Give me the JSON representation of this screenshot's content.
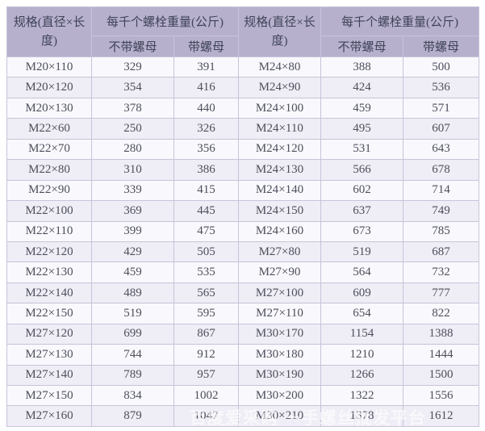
{
  "colors": {
    "header_bg": "#b7b0cd",
    "header_text": "#3e4358",
    "row_light_bg": "#f9f8fc",
    "row_alt_bg": "#efedf5",
    "border": "#c9c3da",
    "cell_text": "#4c4f5c",
    "page_bg": "#ffffff"
  },
  "table": {
    "header": {
      "spec_label": "规格(直径×长\n度)",
      "weight_group_label": "每千个螺栓重量(公斤)",
      "without_nut_label": "不带螺母",
      "with_nut_label": "带螺母"
    },
    "rows": [
      {
        "left": {
          "spec": "M20×110",
          "without_nut": "329",
          "with_nut": "391"
        },
        "right": {
          "spec": "M24×80",
          "without_nut": "388",
          "with_nut": "500"
        }
      },
      {
        "left": {
          "spec": "M20×120",
          "without_nut": "354",
          "with_nut": "416"
        },
        "right": {
          "spec": "M24×90",
          "without_nut": "424",
          "with_nut": "536"
        }
      },
      {
        "left": {
          "spec": "M20×130",
          "without_nut": "378",
          "with_nut": "440"
        },
        "right": {
          "spec": "M24×100",
          "without_nut": "459",
          "with_nut": "571"
        }
      },
      {
        "left": {
          "spec": "M22×60",
          "without_nut": "250",
          "with_nut": "326"
        },
        "right": {
          "spec": "M24×110",
          "without_nut": "495",
          "with_nut": "607"
        }
      },
      {
        "left": {
          "spec": "M22×70",
          "without_nut": "280",
          "with_nut": "356"
        },
        "right": {
          "spec": "M24×120",
          "without_nut": "531",
          "with_nut": "643"
        }
      },
      {
        "left": {
          "spec": "M22×80",
          "without_nut": "310",
          "with_nut": "386"
        },
        "right": {
          "spec": "M24×130",
          "without_nut": "566",
          "with_nut": "678"
        }
      },
      {
        "left": {
          "spec": "M22×90",
          "without_nut": "339",
          "with_nut": "415"
        },
        "right": {
          "spec": "M24×140",
          "without_nut": "602",
          "with_nut": "714"
        }
      },
      {
        "left": {
          "spec": "M22×100",
          "without_nut": "369",
          "with_nut": "445"
        },
        "right": {
          "spec": "M24×150",
          "without_nut": "637",
          "with_nut": "749"
        }
      },
      {
        "left": {
          "spec": "M22×110",
          "without_nut": "399",
          "with_nut": "475"
        },
        "right": {
          "spec": "M24×160",
          "without_nut": "673",
          "with_nut": "785"
        }
      },
      {
        "left": {
          "spec": "M22×120",
          "without_nut": "429",
          "with_nut": "505"
        },
        "right": {
          "spec": "M27×80",
          "without_nut": "519",
          "with_nut": "687"
        }
      },
      {
        "left": {
          "spec": "M22×130",
          "without_nut": "459",
          "with_nut": "535"
        },
        "right": {
          "spec": "M27×90",
          "without_nut": "564",
          "with_nut": "732"
        }
      },
      {
        "left": {
          "spec": "M22×140",
          "without_nut": "489",
          "with_nut": "565"
        },
        "right": {
          "spec": "M27×100",
          "without_nut": "609",
          "with_nut": "777"
        }
      },
      {
        "left": {
          "spec": "M22×150",
          "without_nut": "519",
          "with_nut": "595"
        },
        "right": {
          "spec": "M27×110",
          "without_nut": "654",
          "with_nut": "822"
        }
      },
      {
        "left": {
          "spec": "M27×120",
          "without_nut": "699",
          "with_nut": "867"
        },
        "right": {
          "spec": "M30×170",
          "without_nut": "1154",
          "with_nut": "1388"
        }
      },
      {
        "left": {
          "spec": "M27×130",
          "without_nut": "744",
          "with_nut": "912"
        },
        "right": {
          "spec": "M30×180",
          "without_nut": "1210",
          "with_nut": "1444"
        }
      },
      {
        "left": {
          "spec": "M27×140",
          "without_nut": "789",
          "with_nut": "957"
        },
        "right": {
          "spec": "M30×190",
          "without_nut": "1266",
          "with_nut": "1500"
        }
      },
      {
        "left": {
          "spec": "M27×150",
          "without_nut": "834",
          "with_nut": "1002"
        },
        "right": {
          "spec": "M30×200",
          "without_nut": "1322",
          "with_nut": "1556"
        }
      },
      {
        "left": {
          "spec": "M27×160",
          "without_nut": "879",
          "with_nut": "1047"
        },
        "right": {
          "spec": "M30×210",
          "without_nut": "1378",
          "with_nut": "1612"
        }
      }
    ]
  },
  "watermark": {
    "text": "百度爱采购 一手螺丝批发平台"
  }
}
